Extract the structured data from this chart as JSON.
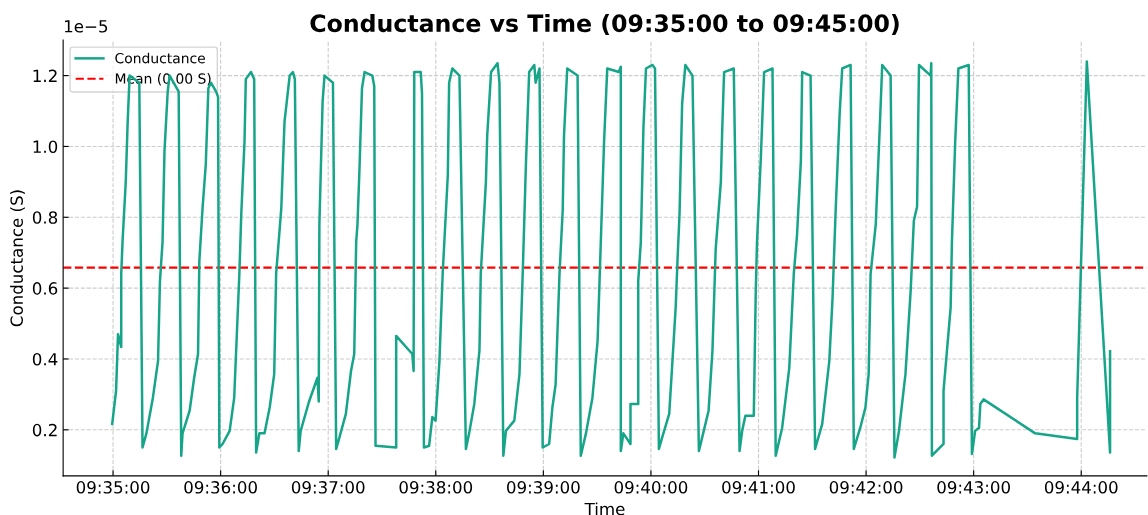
{
  "chart_data": {
    "type": "line",
    "title": "Conductance vs Time (09:35:00 to 09:45:00)",
    "xlabel": "Time",
    "ylabel": "Conductance (S)",
    "annotations": [
      "1e−5"
    ],
    "xlim": [
      9.5756,
      9.7435
    ],
    "ylim": [
      0.07,
      1.3
    ],
    "xticks": [
      {
        "value": 9.583333,
        "label": "09:35:00"
      },
      {
        "value": 9.6,
        "label": "09:36:00"
      },
      {
        "value": 9.616667,
        "label": "09:37:00"
      },
      {
        "value": 9.633333,
        "label": "09:38:00"
      },
      {
        "value": 9.65,
        "label": "09:39:00"
      },
      {
        "value": 9.666667,
        "label": "09:40:00"
      },
      {
        "value": 9.683333,
        "label": "09:41:00"
      },
      {
        "value": 9.7,
        "label": "09:42:00"
      },
      {
        "value": 9.716667,
        "label": "09:43:00"
      },
      {
        "value": 9.733333,
        "label": "09:44:00"
      }
    ],
    "yticks": [
      0.2,
      0.4,
      0.6,
      0.8,
      {
        "value": 1,
        "label": "1.0"
      },
      1.2
    ],
    "grid": true,
    "legend": "top left",
    "line_style": "solid",
    "ref_lines": [
      {
        "axis": "y",
        "value": 0.658,
        "label": "Mean (0.00 S)",
        "color": "#ff0000",
        "line_style": "dashed"
      }
    ],
    "series": [
      {
        "name": "Conductance",
        "color": "#17a589",
        "x": [
          9.5832,
          9.5838,
          9.5841,
          9.5846,
          9.5846,
          9.5848,
          9.5853,
          9.5856,
          9.5859,
          9.5874,
          9.5879,
          9.5885,
          9.5895,
          9.5903,
          9.5906,
          9.591,
          9.5913,
          9.5918,
          9.5921,
          9.5935,
          9.5939,
          9.5941,
          9.5952,
          9.5959,
          9.5965,
          9.5967,
          9.5972,
          9.5977,
          9.5981,
          9.5985,
          9.5993,
          9.5996,
          9.5998,
          9.6003,
          9.6014,
          9.6021,
          9.6029,
          9.6032,
          9.6037,
          9.6039,
          9.6047,
          9.6052,
          9.6055,
          9.606,
          9.6068,
          9.6076,
          9.6083,
          9.6086,
          9.6094,
          9.6099,
          9.6107,
          9.6112,
          9.6115,
          9.6121,
          9.6124,
          9.6137,
          9.615,
          9.6152,
          9.6153,
          9.6158,
          9.6161,
          9.6174,
          9.6179,
          9.6184,
          9.6194,
          9.6202,
          9.6207,
          9.621,
          9.6212,
          9.6215,
          9.6219,
          9.6223,
          9.6235,
          9.6238,
          9.624,
          9.6272,
          9.6272,
          9.6297,
          9.6299,
          9.63,
          9.631,
          9.6312,
          9.6315,
          9.6323,
          9.6328,
          9.6333,
          9.6339,
          9.6344,
          9.6352,
          9.6354,
          9.6359,
          9.637,
          9.638,
          9.6385,
          9.6393,
          9.6401,
          9.6403,
          9.6411,
          9.6413,
          9.6419,
          9.6429,
          9.6432,
          9.6438,
          9.6442,
          9.6455,
          9.6463,
          9.6468,
          9.6473,
          9.6478,
          9.6486,
          9.6488,
          9.6494,
          9.6499,
          9.6509,
          9.6514,
          9.6519,
          9.6525,
          9.653,
          9.6532,
          9.6537,
          9.6553,
          9.6558,
          9.6566,
          9.6576,
          9.6584,
          9.6589,
          9.6594,
          9.6599,
          9.6617,
          9.662,
          9.662,
          9.6624,
          9.6635,
          9.6635,
          9.6647,
          9.6647,
          9.6651,
          9.6655,
          9.6659,
          9.6669,
          9.6673,
          9.6679,
          9.6684,
          9.6695,
          9.67,
          9.6705,
          9.6708,
          9.6711,
          9.6715,
          9.672,
          9.6731,
          9.6741,
          9.6746,
          9.6756,
          9.6762,
          9.6767,
          9.6775,
          9.6777,
          9.678,
          9.6795,
          9.6804,
          9.6808,
          9.6813,
          9.6826,
          9.6829,
          9.6831,
          9.6837,
          9.6842,
          9.6855,
          9.686,
          9.687,
          9.6881,
          9.6888,
          9.6893,
          9.6899,
          9.6901,
          9.6914,
          9.6921,
          9.6932,
          9.6943,
          9.6948,
          9.6953,
          9.6959,
          9.6963,
          9.6976,
          9.6981,
          9.6991,
          9.6999,
          9.7004,
          9.7007,
          9.7015,
          9.7022,
          9.7025,
          9.7038,
          9.7044,
          9.7051,
          9.7061,
          9.7069,
          9.7074,
          9.7079,
          9.7082,
          9.71,
          9.7101,
          9.7102,
          9.712,
          9.712,
          9.7131,
          9.7133,
          9.7138,
          9.7143,
          9.7159,
          9.7164,
          9.7169,
          9.7175,
          9.7177,
          9.7182,
          9.7262,
          9.7327,
          9.7327,
          9.7342,
          9.7378,
          9.7378
        ],
        "values": [
          0.217,
          0.31,
          0.47,
          0.434,
          0.64,
          0.73,
          0.9,
          1.07,
          1.2,
          1.18,
          0.15,
          0.19,
          0.29,
          0.394,
          0.62,
          0.73,
          0.986,
          1.155,
          1.2,
          1.155,
          0.127,
          0.19,
          0.254,
          0.347,
          0.414,
          0.676,
          0.826,
          0.949,
          1.164,
          1.18,
          1.155,
          1.14,
          0.15,
          0.16,
          0.197,
          0.29,
          0.64,
          0.81,
          1.014,
          1.19,
          1.21,
          1.19,
          0.136,
          0.19,
          0.19,
          0.263,
          0.357,
          0.64,
          0.826,
          1.07,
          1.2,
          1.21,
          1.19,
          0.14,
          0.197,
          0.28,
          0.347,
          0.28,
          0.78,
          1.127,
          1.2,
          1.18,
          0.146,
          0.178,
          0.245,
          0.366,
          0.414,
          0.73,
          0.78,
          0.93,
          1.164,
          1.21,
          1.2,
          1.17,
          0.155,
          0.15,
          0.465,
          0.414,
          0.366,
          1.21,
          1.21,
          1.15,
          0.15,
          0.155,
          0.236,
          0.226,
          0.394,
          0.64,
          0.92,
          1.18,
          1.22,
          1.2,
          0.146,
          0.19,
          0.273,
          0.424,
          0.64,
          0.9,
          1.03,
          1.21,
          1.235,
          1.18,
          0.127,
          0.197,
          0.226,
          0.357,
          0.64,
          0.95,
          1.21,
          1.23,
          1.18,
          1.22,
          0.15,
          0.16,
          0.263,
          0.328,
          0.64,
          0.82,
          1.03,
          1.22,
          1.2,
          0.127,
          0.19,
          0.29,
          0.45,
          0.73,
          1.01,
          1.22,
          1.21,
          1.225,
          0.14,
          0.19,
          0.16,
          0.273,
          0.273,
          0.62,
          0.73,
          1.05,
          1.22,
          1.23,
          1.22,
          0.146,
          0.178,
          0.245,
          0.394,
          0.545,
          0.686,
          0.81,
          1.12,
          1.23,
          1.2,
          0.14,
          0.178,
          0.254,
          0.424,
          0.71,
          0.9,
          1.04,
          1.21,
          1.22,
          0.14,
          0.197,
          0.24,
          0.24,
          0.583,
          0.73,
          0.97,
          1.21,
          1.22,
          0.127,
          0.206,
          0.375,
          0.64,
          0.75,
          0.96,
          1.21,
          1.2,
          0.146,
          0.216,
          0.394,
          0.57,
          0.826,
          1.09,
          1.22,
          1.23,
          0.146,
          0.206,
          0.263,
          0.357,
          0.64,
          0.78,
          1.09,
          1.23,
          1.2,
          0.122,
          0.197,
          0.357,
          0.59,
          0.79,
          0.83,
          1.23,
          1.2,
          1.235,
          0.127,
          0.16,
          0.31,
          0.545,
          0.73,
          1.01,
          1.22,
          1.23,
          0.132,
          0.197,
          0.206,
          0.273,
          0.286,
          0.19,
          0.174,
          0.286,
          1.24,
          0.136,
          0.422
        ]
      }
    ]
  }
}
